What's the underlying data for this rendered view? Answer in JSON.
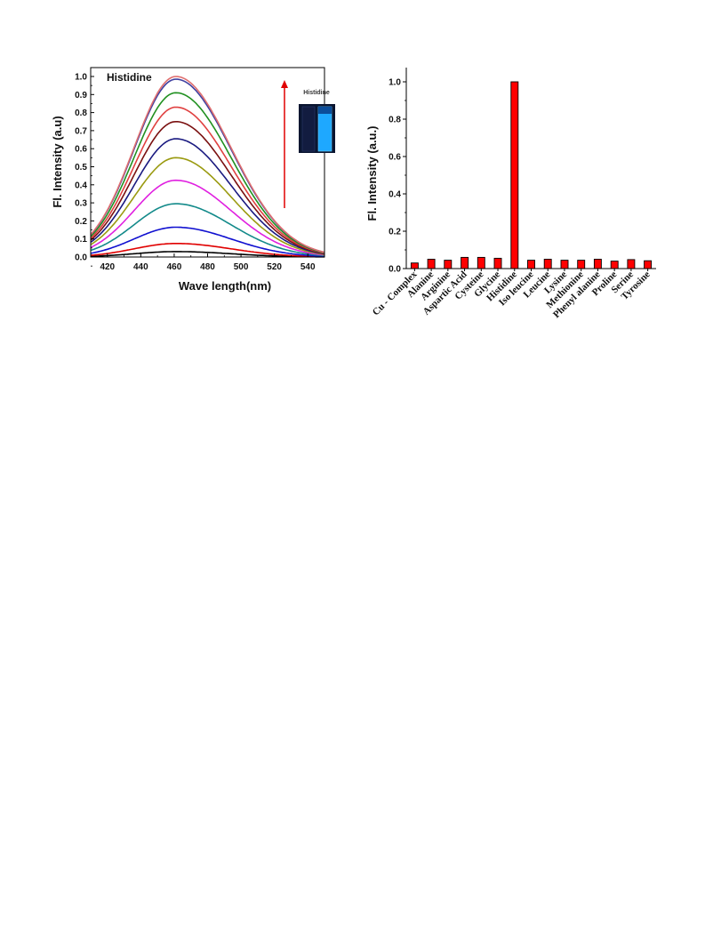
{
  "chart_data": [
    {
      "type": "line",
      "title": "Histidine",
      "xlabel": "Wave length(nm)",
      "ylabel": "Fl. Intensity (a.u)",
      "xlim": [
        410,
        550
      ],
      "ylim": [
        0,
        1.05
      ],
      "xticks": [
        420,
        440,
        460,
        480,
        500,
        520,
        540
      ],
      "yticks": [
        "0.0",
        "0.1",
        "0.2",
        "0.3",
        "0.4",
        "0.5",
        "0.6",
        "0.7",
        "0.8",
        "0.9",
        "1.0"
      ],
      "peak_x": 461,
      "legend": "none",
      "grid": false,
      "arrow_direction": "up",
      "inset_label": "Histidine",
      "series": [
        {
          "peak": 0.03,
          "color": "#000000"
        },
        {
          "peak": 0.075,
          "color": "#e00000"
        },
        {
          "peak": 0.165,
          "color": "#1010d0"
        },
        {
          "peak": 0.295,
          "color": "#138a8a"
        },
        {
          "peak": 0.425,
          "color": "#e020e0"
        },
        {
          "peak": 0.55,
          "color": "#9a9a10"
        },
        {
          "peak": 0.655,
          "color": "#1a1a80"
        },
        {
          "peak": 0.75,
          "color": "#7a1010"
        },
        {
          "peak": 0.83,
          "color": "#e04040"
        },
        {
          "peak": 0.91,
          "color": "#209020"
        },
        {
          "peak": 0.985,
          "color": "#4040a0"
        },
        {
          "peak": 1.0,
          "color": "#e07070"
        }
      ]
    },
    {
      "type": "bar",
      "title": "",
      "xlabel": "",
      "ylabel": "Fl. Intensity (a.u.)",
      "ylim": [
        0,
        1.05
      ],
      "yticks": [
        "0.0",
        "0.2",
        "0.4",
        "0.6",
        "0.8",
        "1.0"
      ],
      "bar_color": "#ff0000",
      "legend": "none",
      "grid": false,
      "categories": [
        "Cu - Complex",
        "Alanine",
        "Arginine",
        "Aspartic Acid",
        "Cysteine",
        "Glycine",
        "Histidine",
        "Iso leucine",
        "Leucine",
        "Lysine",
        "Methionine",
        "Phenyl alanine",
        "Proline",
        "Serine",
        "Tyrosine"
      ],
      "values": [
        0.03,
        0.05,
        0.045,
        0.06,
        0.06,
        0.055,
        1.0,
        0.045,
        0.05,
        0.045,
        0.045,
        0.05,
        0.04,
        0.048,
        0.042
      ]
    }
  ]
}
